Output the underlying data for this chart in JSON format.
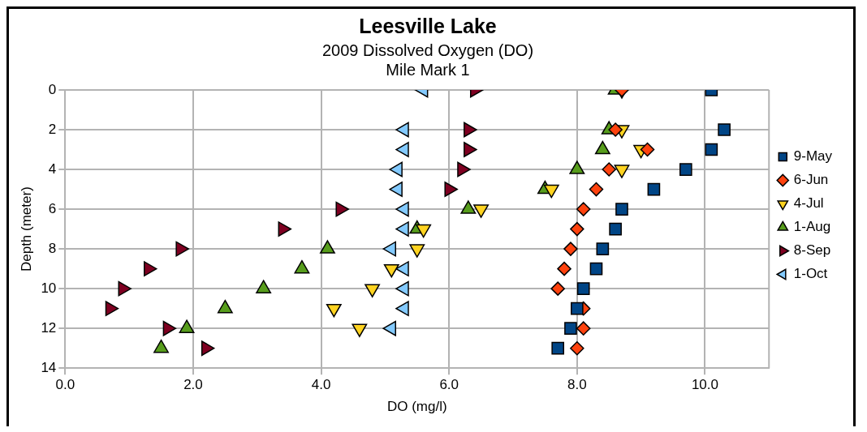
{
  "chart_data": {
    "type": "scatter",
    "title": "Leesville Lake",
    "subtitle": "2009 Dissolved Oxygen (DO)\nMile Mark 1",
    "xlabel": "DO (mg/l)",
    "ylabel": "Depth (meter)",
    "xlim": [
      0,
      11
    ],
    "xticks": [
      {
        "value": 0,
        "label": "0.0"
      },
      {
        "value": 2,
        "label": "2.0"
      },
      {
        "value": 4,
        "label": "4.0"
      },
      {
        "value": 6,
        "label": "6.0"
      },
      {
        "value": 8,
        "label": "8.0"
      },
      {
        "value": 10,
        "label": "10.0"
      }
    ],
    "ylim": [
      14,
      0
    ],
    "yticks": [
      0,
      2,
      4,
      6,
      8,
      10,
      12,
      14
    ],
    "grid": true,
    "legend": "right",
    "series": [
      {
        "name": "9-May",
        "color": "#004586",
        "marker": "square",
        "x": [
          10.1,
          10.3,
          10.1,
          9.7,
          9.2,
          8.7,
          8.6,
          8.4,
          8.3,
          8.1,
          8.0,
          7.9,
          7.7
        ],
        "values": [
          0,
          2,
          3,
          4,
          5,
          6,
          7,
          8,
          9,
          10,
          11,
          12,
          13
        ]
      },
      {
        "name": "6-Jun",
        "color": "#ff420e",
        "marker": "diamond",
        "x": [
          8.7,
          8.6,
          9.1,
          8.5,
          8.3,
          8.1,
          8.0,
          7.9,
          7.8,
          7.7,
          8.1,
          8.1,
          8.0
        ],
        "values": [
          0,
          2,
          3,
          4,
          5,
          6,
          7,
          8,
          9,
          10,
          11,
          12,
          13
        ]
      },
      {
        "name": "4-Jul",
        "color": "#ffd320",
        "marker": "triangle-down",
        "x": [
          8.7,
          8.7,
          9.0,
          8.7,
          7.6,
          6.5,
          5.6,
          5.5,
          5.1,
          4.8,
          4.2,
          4.6
        ],
        "values": [
          0,
          2,
          3,
          4,
          5,
          6,
          7,
          8,
          9,
          10,
          11,
          12
        ]
      },
      {
        "name": "1-Aug",
        "color": "#579d1c",
        "marker": "triangle",
        "x": [
          8.6,
          8.5,
          8.4,
          8.0,
          7.5,
          6.3,
          5.5,
          4.1,
          3.7,
          3.1,
          2.5,
          1.9,
          1.5
        ],
        "values": [
          0,
          2,
          3,
          4,
          5,
          6,
          7,
          8,
          9,
          10,
          11,
          12,
          13
        ]
      },
      {
        "name": "8-Sep",
        "color": "#7e0021",
        "marker": "triangle-right",
        "x": [
          6.4,
          6.3,
          6.3,
          6.2,
          6.0,
          4.3,
          3.4,
          1.8,
          1.3,
          0.9,
          0.7,
          1.6,
          2.2
        ],
        "values": [
          0,
          2,
          3,
          4,
          5,
          6,
          7,
          8,
          9,
          10,
          11,
          12,
          13
        ]
      },
      {
        "name": "1-Oct",
        "color": "#83caff",
        "marker": "triangle-left",
        "x": [
          5.6,
          5.3,
          5.3,
          5.2,
          5.2,
          5.3,
          5.3,
          5.1,
          5.3,
          5.3,
          5.3,
          5.1
        ],
        "values": [
          0,
          2,
          3,
          4,
          5,
          6,
          7,
          8,
          9,
          10,
          11,
          12
        ]
      }
    ]
  }
}
